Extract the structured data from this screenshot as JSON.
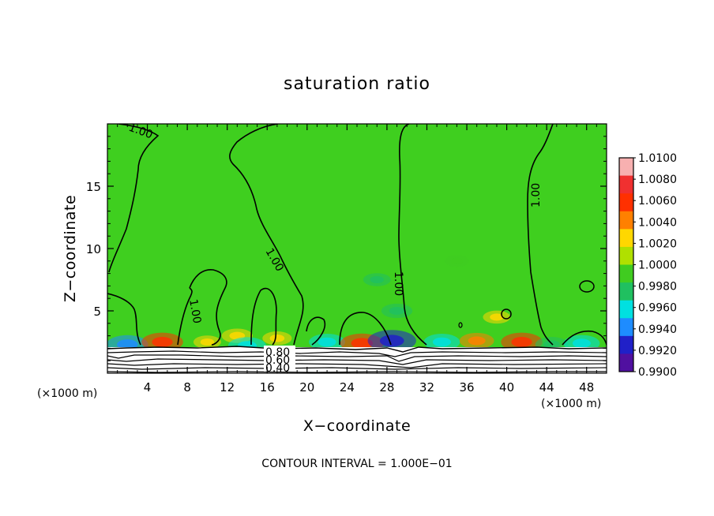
{
  "chart_data": {
    "type": "heatmap",
    "title": "saturation ratio",
    "xlabel": "X−coordinate",
    "ylabel": "Z−coordinate",
    "x_unit_left": "(×1000 m)",
    "x_unit_right": "(×1000 m)",
    "footer": "CONTOUR INTERVAL = 1.000E−01",
    "xlim": [
      0,
      50
    ],
    "ylim": [
      0,
      20
    ],
    "xticks": [
      4,
      8,
      12,
      16,
      20,
      24,
      28,
      32,
      36,
      40,
      44,
      48
    ],
    "yticks": [
      5,
      10,
      15
    ],
    "colorbar": {
      "levels": [
        "1.0100",
        "1.0080",
        "1.0060",
        "1.0040",
        "1.0020",
        "1.0000",
        "0.9980",
        "0.9960",
        "0.9940",
        "0.9920",
        "0.9900"
      ],
      "colors": [
        "#f7b0b0",
        "#f03030",
        "#ff3000",
        "#ff8000",
        "#ffd700",
        "#b0e000",
        "#40cc20",
        "#20c060",
        "#00e0e0",
        "#1e8cff",
        "#2020c8",
        "#5010a0"
      ]
    },
    "background_color": "#3fcf1f",
    "contour_labels": [
      "1.00",
      "1.00",
      "1.00",
      "1.00",
      "1.00",
      "0.80",
      "0.60",
      "0.40"
    ],
    "hotspots": [
      {
        "x": 2.0,
        "z": 2.3,
        "value": 0.9935
      },
      {
        "x": 5.5,
        "z": 2.5,
        "value": 1.0065
      },
      {
        "x": 10.0,
        "z": 2.5,
        "value": 1.0025
      },
      {
        "x": 13.0,
        "z": 3.0,
        "value": 1.0035
      },
      {
        "x": 14.0,
        "z": 2.2,
        "value": 0.9945
      },
      {
        "x": 17.0,
        "z": 2.8,
        "value": 1.003
      },
      {
        "x": 22.0,
        "z": 2.5,
        "value": 0.995
      },
      {
        "x": 25.5,
        "z": 2.4,
        "value": 1.007
      },
      {
        "x": 28.5,
        "z": 2.6,
        "value": 0.9915
      },
      {
        "x": 29.0,
        "z": 5.0,
        "value": 0.9965
      },
      {
        "x": 27.0,
        "z": 7.5,
        "value": 0.9975
      },
      {
        "x": 33.5,
        "z": 2.5,
        "value": 0.995
      },
      {
        "x": 37.0,
        "z": 2.6,
        "value": 1.0045
      },
      {
        "x": 39.0,
        "z": 4.5,
        "value": 1.0025
      },
      {
        "x": 41.5,
        "z": 2.5,
        "value": 1.0065
      },
      {
        "x": 44.5,
        "z": 2.3,
        "value": 0.996
      },
      {
        "x": 47.5,
        "z": 2.4,
        "value": 0.995
      },
      {
        "x": 35.0,
        "z": 9.0,
        "value": 0.9985
      }
    ]
  }
}
